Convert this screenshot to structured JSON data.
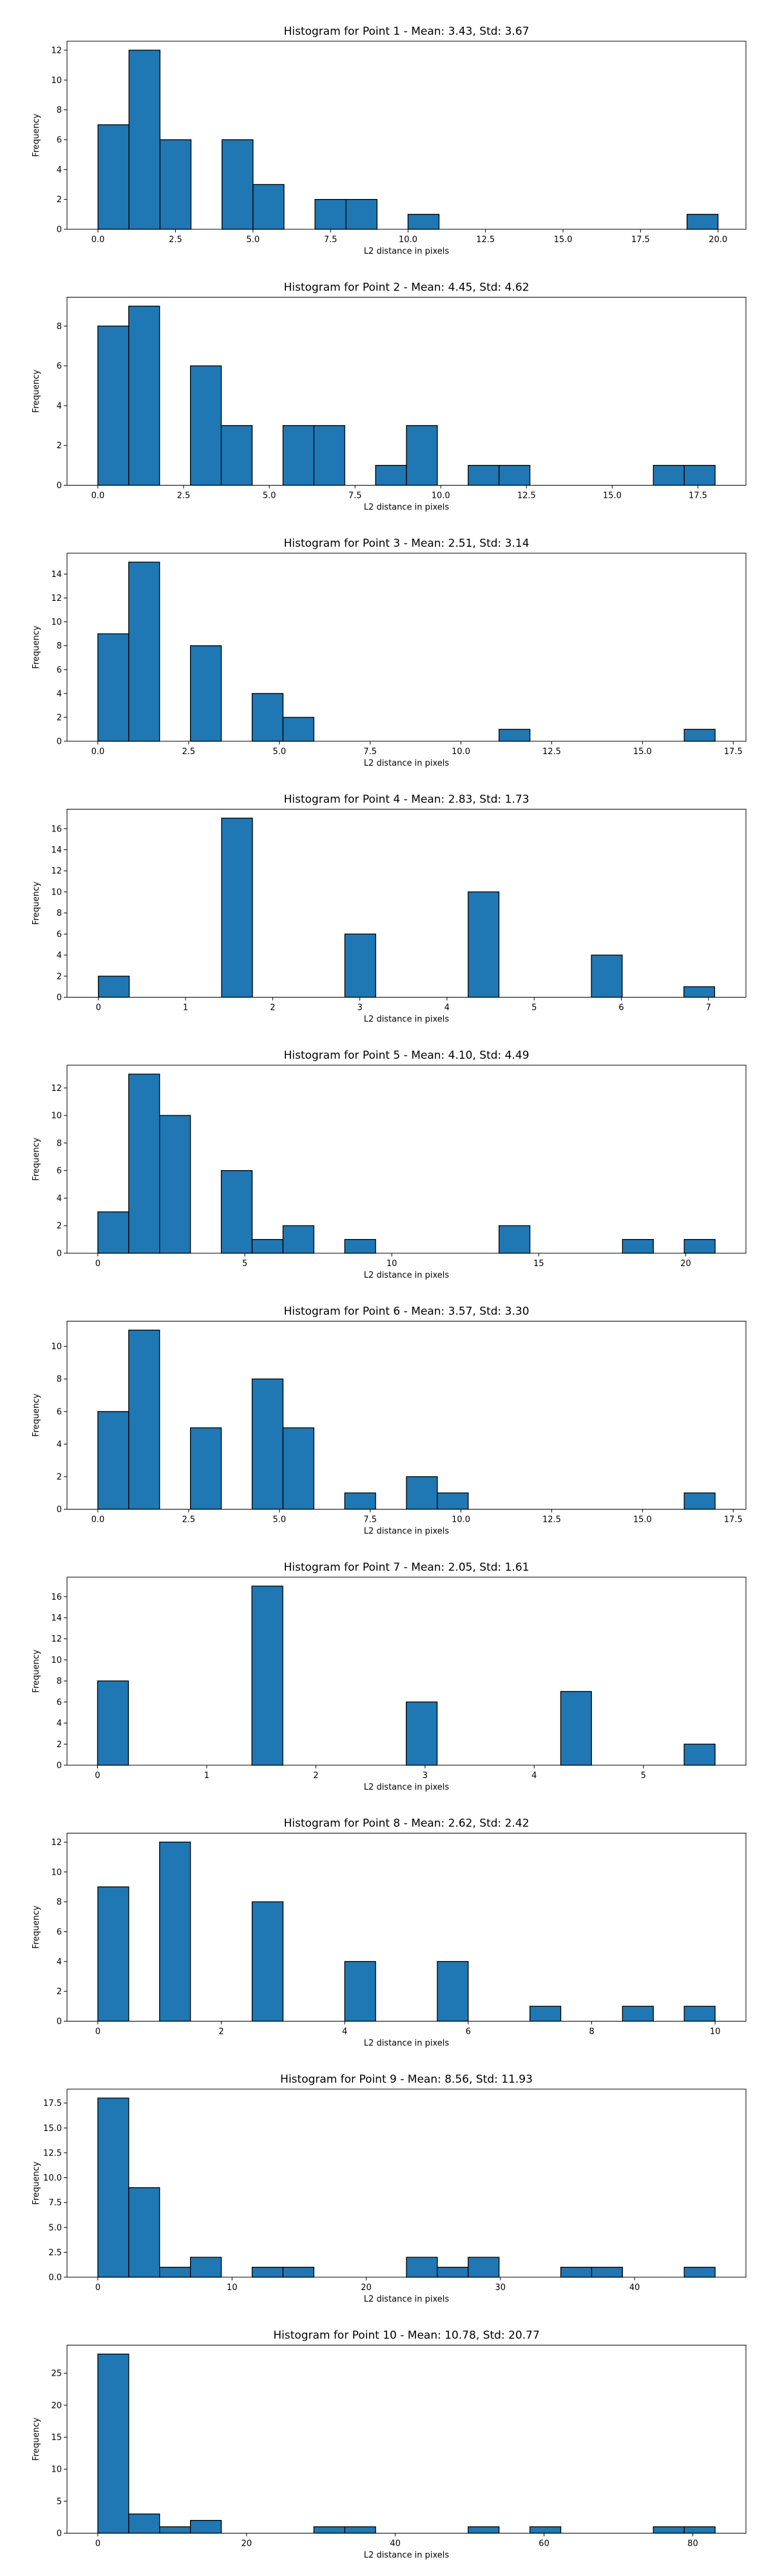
{
  "colors": {
    "bar": "#1f77b4",
    "edge": "#000000"
  },
  "chart_data": [
    {
      "type": "bar",
      "title": "Histogram for Point 1 - Mean: 3.43, Std: 3.67",
      "xlabel": "L2 distance in pixels",
      "ylabel": "Frequency",
      "grid": false,
      "xlim": [
        -1.0,
        20.9
      ],
      "ylim": [
        0,
        12.6
      ],
      "xticks": [
        0,
        2.5,
        5,
        7.5,
        10,
        12.5,
        15,
        17.5,
        20
      ],
      "xtick_labels": [
        "0.0",
        "2.5",
        "5.0",
        "7.5",
        "10.0",
        "12.5",
        "15.0",
        "17.5",
        "20.0"
      ],
      "yticks": [
        0,
        2,
        4,
        6,
        8,
        10,
        12
      ],
      "ytick_labels": [
        "0",
        "2",
        "4",
        "6",
        "8",
        "10",
        "12"
      ],
      "bin_edges": [
        0,
        1,
        2,
        3,
        4,
        5,
        6,
        7,
        8,
        9,
        10,
        11,
        12,
        13,
        14,
        15,
        16,
        17,
        18,
        19,
        20
      ],
      "values": [
        7,
        12,
        6,
        0,
        6,
        3,
        0,
        2,
        2,
        0,
        1,
        0,
        0,
        0,
        0,
        0,
        0,
        0,
        0,
        1
      ]
    },
    {
      "type": "bar",
      "title": "Histogram for Point 2 - Mean: 4.45, Std: 4.62",
      "xlabel": "L2 distance in pixels",
      "ylabel": "Frequency",
      "grid": false,
      "xlim": [
        -0.9,
        18.9
      ],
      "ylim": [
        0,
        9.45
      ],
      "xticks": [
        0,
        2.5,
        5,
        7.5,
        10,
        12.5,
        15,
        17.5
      ],
      "xtick_labels": [
        "0.0",
        "2.5",
        "5.0",
        "7.5",
        "10.0",
        "12.5",
        "15.0",
        "17.5"
      ],
      "yticks": [
        0,
        2,
        4,
        6,
        8
      ],
      "ytick_labels": [
        "0",
        "2",
        "4",
        "6",
        "8"
      ],
      "bin_edges": [
        0,
        0.9,
        1.8,
        2.7,
        3.6,
        4.5,
        5.4,
        6.3,
        7.2,
        8.1,
        9.0,
        9.9,
        10.8,
        11.7,
        12.6,
        13.5,
        14.4,
        15.3,
        16.2,
        17.1,
        18.0
      ],
      "values": [
        8,
        9,
        0,
        6,
        3,
        0,
        3,
        3,
        0,
        1,
        3,
        0,
        1,
        1,
        0,
        0,
        0,
        0,
        1,
        1
      ]
    },
    {
      "type": "bar",
      "title": "Histogram for Point 3 - Mean: 2.51, Std: 3.14",
      "xlabel": "L2 distance in pixels",
      "ylabel": "Frequency",
      "grid": false,
      "xlim": [
        -0.85,
        17.85
      ],
      "ylim": [
        0,
        15.75
      ],
      "xticks": [
        0,
        2.5,
        5,
        7.5,
        10,
        12.5,
        15,
        17.5
      ],
      "xtick_labels": [
        "0.0",
        "2.5",
        "5.0",
        "7.5",
        "10.0",
        "12.5",
        "15.0",
        "17.5"
      ],
      "yticks": [
        0,
        2,
        4,
        6,
        8,
        10,
        12,
        14
      ],
      "ytick_labels": [
        "0",
        "2",
        "4",
        "6",
        "8",
        "10",
        "12",
        "14"
      ],
      "bin_edges": [
        0,
        0.85,
        1.7,
        2.55,
        3.4,
        4.25,
        5.1,
        5.95,
        6.8,
        7.65,
        8.5,
        9.35,
        10.2,
        11.05,
        11.9,
        12.75,
        13.6,
        14.45,
        15.3,
        16.15,
        17.0
      ],
      "values": [
        9,
        15,
        0,
        8,
        0,
        4,
        2,
        0,
        0,
        0,
        0,
        0,
        0,
        1,
        0,
        0,
        0,
        0,
        0,
        1
      ]
    },
    {
      "type": "bar",
      "title": "Histogram for Point 4 - Mean: 2.83, Std: 1.73",
      "xlabel": "L2 distance in pixels",
      "ylabel": "Frequency",
      "grid": false,
      "xlim": [
        -0.36,
        7.43
      ],
      "ylim": [
        0,
        17.85
      ],
      "xticks": [
        0,
        1,
        2,
        3,
        4,
        5,
        6,
        7
      ],
      "xtick_labels": [
        "0",
        "1",
        "2",
        "3",
        "4",
        "5",
        "6",
        "7"
      ],
      "yticks": [
        0,
        2,
        4,
        6,
        8,
        10,
        12,
        14,
        16
      ],
      "ytick_labels": [
        "0",
        "2",
        "4",
        "6",
        "8",
        "10",
        "12",
        "14",
        "16"
      ],
      "bin_edges": [
        0,
        0.354,
        0.707,
        1.061,
        1.414,
        1.768,
        2.121,
        2.475,
        2.828,
        3.182,
        3.536,
        3.889,
        4.243,
        4.596,
        4.95,
        5.303,
        5.657,
        6.01,
        6.364,
        6.718,
        7.071
      ],
      "values": [
        2,
        0,
        0,
        0,
        17,
        0,
        0,
        0,
        6,
        0,
        0,
        0,
        10,
        0,
        0,
        0,
        4,
        0,
        0,
        1
      ]
    },
    {
      "type": "bar",
      "title": "Histogram for Point 5 - Mean: 4.10, Std: 4.49",
      "xlabel": "L2 distance in pixels",
      "ylabel": "Frequency",
      "grid": false,
      "xlim": [
        -1.05,
        22.05
      ],
      "ylim": [
        0,
        13.65
      ],
      "xticks": [
        0,
        5,
        10,
        15,
        20
      ],
      "xtick_labels": [
        "0",
        "5",
        "10",
        "15",
        "20"
      ],
      "yticks": [
        0,
        2,
        4,
        6,
        8,
        10,
        12
      ],
      "ytick_labels": [
        "0",
        "2",
        "4",
        "6",
        "8",
        "10",
        "12"
      ],
      "bin_edges": [
        0,
        1.05,
        2.1,
        3.15,
        4.2,
        5.25,
        6.3,
        7.35,
        8.4,
        9.45,
        10.5,
        11.55,
        12.6,
        13.65,
        14.7,
        15.75,
        16.8,
        17.85,
        18.9,
        19.95,
        21.0
      ],
      "values": [
        3,
        13,
        10,
        0,
        6,
        1,
        2,
        0,
        1,
        0,
        0,
        0,
        0,
        2,
        0,
        0,
        0,
        1,
        0,
        1
      ]
    },
    {
      "type": "bar",
      "title": "Histogram for Point 6 - Mean: 3.57, Std: 3.30",
      "xlabel": "L2 distance in pixels",
      "ylabel": "Frequency",
      "grid": false,
      "xlim": [
        -0.85,
        17.85
      ],
      "ylim": [
        0,
        11.55
      ],
      "xticks": [
        0,
        2.5,
        5,
        7.5,
        10,
        12.5,
        15,
        17.5
      ],
      "xtick_labels": [
        "0.0",
        "2.5",
        "5.0",
        "7.5",
        "10.0",
        "12.5",
        "15.0",
        "17.5"
      ],
      "yticks": [
        0,
        2,
        4,
        6,
        8,
        10
      ],
      "ytick_labels": [
        "0",
        "2",
        "4",
        "6",
        "8",
        "10"
      ],
      "bin_edges": [
        0,
        0.85,
        1.7,
        2.55,
        3.4,
        4.25,
        5.1,
        5.95,
        6.8,
        7.65,
        8.5,
        9.35,
        10.2,
        11.05,
        11.9,
        12.75,
        13.6,
        14.45,
        15.3,
        16.15,
        17.0
      ],
      "values": [
        6,
        11,
        0,
        5,
        0,
        8,
        5,
        0,
        1,
        0,
        2,
        1,
        0,
        0,
        0,
        0,
        0,
        0,
        0,
        1
      ]
    },
    {
      "type": "bar",
      "title": "Histogram for Point 7 - Mean: 2.05, Std: 1.61",
      "xlabel": "L2 distance in pixels",
      "ylabel": "Frequency",
      "grid": false,
      "xlim": [
        -0.28,
        5.94
      ],
      "ylim": [
        0,
        17.85
      ],
      "xticks": [
        0,
        1,
        2,
        3,
        4,
        5
      ],
      "xtick_labels": [
        "0",
        "1",
        "2",
        "3",
        "4",
        "5"
      ],
      "yticks": [
        0,
        2,
        4,
        6,
        8,
        10,
        12,
        14,
        16
      ],
      "ytick_labels": [
        "0",
        "2",
        "4",
        "6",
        "8",
        "10",
        "12",
        "14",
        "16"
      ],
      "bin_edges": [
        0,
        0.283,
        0.566,
        0.849,
        1.131,
        1.414,
        1.697,
        1.98,
        2.263,
        2.546,
        2.828,
        3.111,
        3.394,
        3.677,
        3.96,
        4.243,
        4.525,
        4.808,
        5.091,
        5.374,
        5.657
      ],
      "values": [
        8,
        0,
        0,
        0,
        0,
        17,
        0,
        0,
        0,
        0,
        6,
        0,
        0,
        0,
        0,
        7,
        0,
        0,
        0,
        2
      ]
    },
    {
      "type": "bar",
      "title": "Histogram for Point 8 - Mean: 2.62, Std: 2.42",
      "xlabel": "L2 distance in pixels",
      "ylabel": "Frequency",
      "grid": false,
      "xlim": [
        -0.5,
        10.5
      ],
      "ylim": [
        0,
        12.6
      ],
      "xticks": [
        0,
        2,
        4,
        6,
        8,
        10
      ],
      "xtick_labels": [
        "0",
        "2",
        "4",
        "6",
        "8",
        "10"
      ],
      "yticks": [
        0,
        2,
        4,
        6,
        8,
        10,
        12
      ],
      "ytick_labels": [
        "0",
        "2",
        "4",
        "6",
        "8",
        "10",
        "12"
      ],
      "bin_edges": [
        0,
        0.5,
        1.0,
        1.5,
        2.0,
        2.5,
        3.0,
        3.5,
        4.0,
        4.5,
        5.0,
        5.5,
        6.0,
        6.5,
        7.0,
        7.5,
        8.0,
        8.5,
        9.0,
        9.5,
        10.0
      ],
      "values": [
        9,
        0,
        12,
        0,
        0,
        8,
        0,
        0,
        4,
        0,
        0,
        4,
        0,
        0,
        1,
        0,
        0,
        1,
        0,
        1
      ]
    },
    {
      "type": "bar",
      "title": "Histogram for Point 9 - Mean: 8.56, Std: 11.93",
      "xlabel": "L2 distance in pixels",
      "ylabel": "Frequency",
      "grid": false,
      "xlim": [
        -2.3,
        48.3
      ],
      "ylim": [
        0,
        18.9
      ],
      "xticks": [
        0,
        10,
        20,
        30,
        40
      ],
      "xtick_labels": [
        "0",
        "10",
        "20",
        "30",
        "40"
      ],
      "yticks": [
        0,
        2.5,
        5,
        7.5,
        10,
        12.5,
        15,
        17.5
      ],
      "ytick_labels": [
        "0.0",
        "2.5",
        "5.0",
        "7.5",
        "10.0",
        "12.5",
        "15.0",
        "17.5"
      ],
      "bin_edges": [
        0,
        2.3,
        4.6,
        6.9,
        9.2,
        11.5,
        13.8,
        16.1,
        18.4,
        20.7,
        23.0,
        25.3,
        27.6,
        29.9,
        32.2,
        34.5,
        36.8,
        39.1,
        41.4,
        43.7,
        46.0
      ],
      "values": [
        18,
        9,
        1,
        2,
        0,
        1,
        1,
        0,
        0,
        0,
        2,
        1,
        2,
        0,
        0,
        1,
        1,
        0,
        0,
        1
      ]
    },
    {
      "type": "bar",
      "title": "Histogram for Point 10 - Mean: 10.78, Std: 20.77",
      "xlabel": "L2 distance in pixels",
      "ylabel": "Frequency",
      "grid": false,
      "xlim": [
        -4.15,
        87.15
      ],
      "ylim": [
        0,
        29.4
      ],
      "xticks": [
        0,
        20,
        40,
        60,
        80
      ],
      "xtick_labels": [
        "0",
        "20",
        "40",
        "60",
        "80"
      ],
      "yticks": [
        0,
        5,
        10,
        15,
        20,
        25
      ],
      "ytick_labels": [
        "0",
        "5",
        "10",
        "15",
        "20",
        "25"
      ],
      "bin_edges": [
        0,
        4.15,
        8.3,
        12.45,
        16.6,
        20.75,
        24.9,
        29.05,
        33.2,
        37.35,
        41.5,
        45.65,
        49.8,
        53.95,
        58.1,
        62.25,
        66.4,
        70.55,
        74.7,
        78.85,
        83.0
      ],
      "values": [
        28,
        3,
        1,
        2,
        0,
        0,
        0,
        1,
        1,
        0,
        0,
        0,
        1,
        0,
        1,
        0,
        0,
        0,
        1,
        1
      ]
    }
  ]
}
